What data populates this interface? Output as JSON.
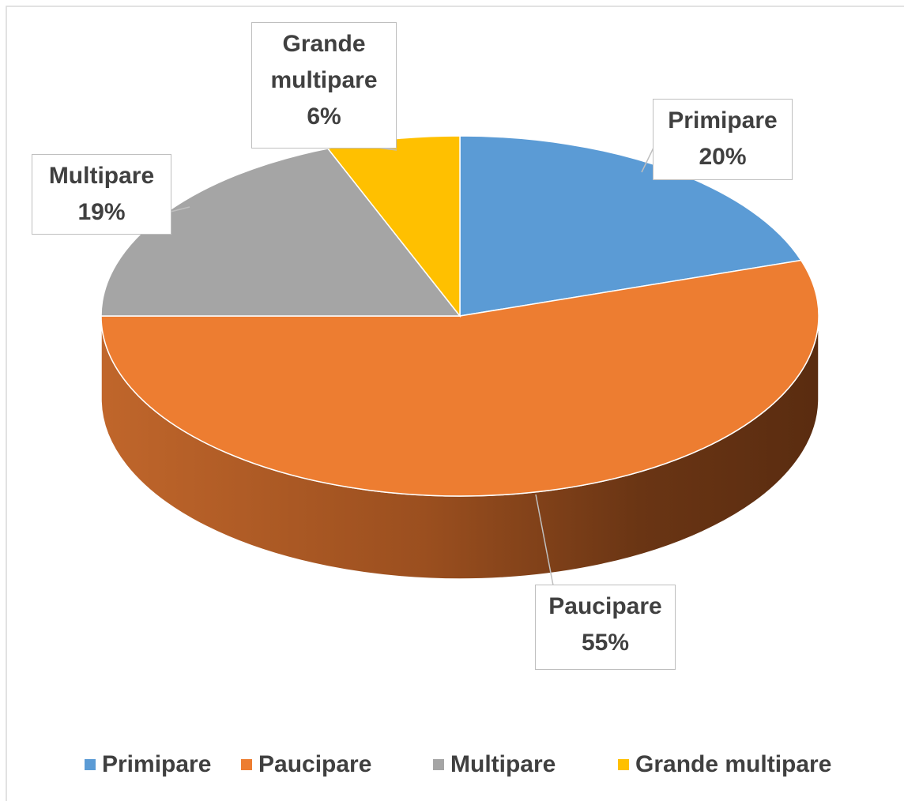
{
  "chart_data": {
    "type": "pie3d",
    "categories": [
      "Primipare",
      "Paucipare",
      "Multipare",
      "Grande multipare"
    ],
    "values": [
      20,
      55,
      19,
      6
    ],
    "value_labels": [
      "20%",
      "55%",
      "19%",
      "6%"
    ],
    "colors": [
      "#5b9bd5",
      "#ed7d31",
      "#a5a5a5",
      "#ffc000"
    ],
    "legend": "bottom"
  }
}
